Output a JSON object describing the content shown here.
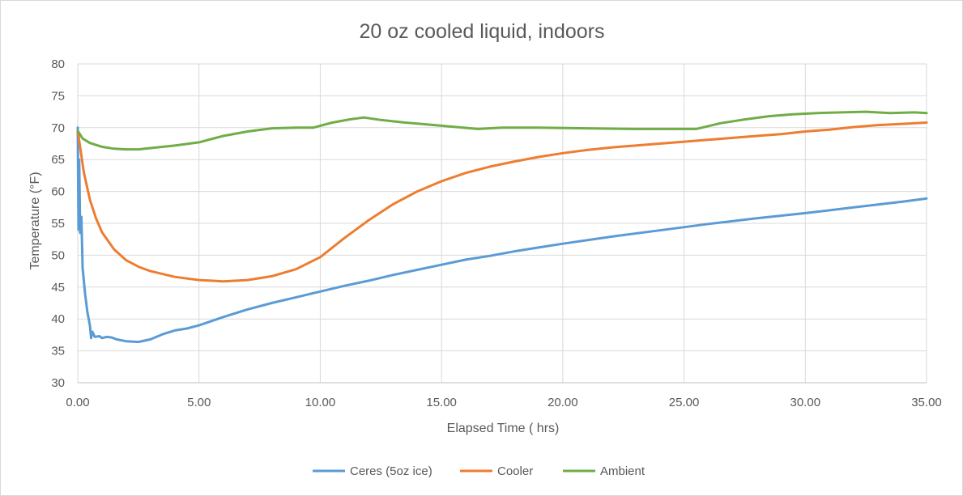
{
  "chart_data": {
    "type": "line",
    "title": "20 oz cooled liquid, indoors",
    "xlabel": "Elapsed Time ( hrs)",
    "ylabel": "Temperature (°F)",
    "xlim": [
      0,
      35
    ],
    "ylim": [
      30,
      80
    ],
    "xticks": [
      0,
      5,
      10,
      15,
      20,
      25,
      30,
      35
    ],
    "xtick_labels": [
      "0.00",
      "5.00",
      "10.00",
      "15.00",
      "20.00",
      "25.00",
      "30.00",
      "35.00"
    ],
    "yticks": [
      30,
      35,
      40,
      45,
      50,
      55,
      60,
      65,
      70,
      75,
      80
    ],
    "ytick_labels": [
      "30",
      "35",
      "40",
      "45",
      "50",
      "55",
      "60",
      "65",
      "70",
      "75",
      "80"
    ],
    "grid": "vertical-and-horizontal",
    "legend_position": "bottom",
    "series": [
      {
        "name": "Ceres (5oz ice)",
        "color": "#5b9bd5",
        "x": [
          0,
          0.03,
          0.06,
          0.1,
          0.15,
          0.2,
          0.3,
          0.4,
          0.5,
          0.55,
          0.6,
          0.7,
          0.9,
          1.0,
          1.2,
          1.4,
          1.6,
          2.0,
          2.5,
          3.0,
          3.5,
          4.0,
          4.5,
          5.0,
          6.0,
          7.0,
          8.0,
          9.0,
          10.0,
          11.0,
          12.0,
          13.0,
          14.0,
          15.0,
          16.0,
          17.0,
          18.0,
          19.0,
          20.0,
          22.0,
          24.0,
          26.0,
          28.0,
          30.0,
          32.0,
          34.0,
          35.0
        ],
        "y": [
          70,
          54,
          65,
          53.5,
          56,
          48,
          44,
          41,
          39,
          37,
          38,
          37.2,
          37.3,
          37.0,
          37.2,
          37.1,
          36.8,
          36.5,
          36.4,
          36.8,
          37.6,
          38.2,
          38.5,
          39.0,
          40.3,
          41.5,
          42.5,
          43.4,
          44.3,
          45.2,
          46.0,
          46.9,
          47.7,
          48.5,
          49.3,
          49.9,
          50.6,
          51.2,
          51.8,
          52.9,
          53.9,
          54.9,
          55.8,
          56.6,
          57.5,
          58.4,
          58.9
        ]
      },
      {
        "name": "Cooler",
        "color": "#ed7d31",
        "x": [
          0,
          0.25,
          0.5,
          0.75,
          1.0,
          1.5,
          2.0,
          2.5,
          3.0,
          4.0,
          5.0,
          6.0,
          7.0,
          8.0,
          9.0,
          10.0,
          11.0,
          12.0,
          13.0,
          14.0,
          15.0,
          16.0,
          17.0,
          18.0,
          19.0,
          20.0,
          21.0,
          22.0,
          23.0,
          24.0,
          25.0,
          26.0,
          27.0,
          28.0,
          29.0,
          30.0,
          31.0,
          32.0,
          33.0,
          34.0,
          35.0
        ],
        "y": [
          69.5,
          63.0,
          58.7,
          55.8,
          53.6,
          50.9,
          49.2,
          48.2,
          47.5,
          46.6,
          46.1,
          45.9,
          46.1,
          46.7,
          47.8,
          49.7,
          52.7,
          55.5,
          58.0,
          60.0,
          61.6,
          62.9,
          63.9,
          64.7,
          65.4,
          66.0,
          66.5,
          66.9,
          67.2,
          67.5,
          67.8,
          68.1,
          68.4,
          68.7,
          69.0,
          69.4,
          69.7,
          70.1,
          70.4,
          70.6,
          70.8
        ]
      },
      {
        "name": "Ambient",
        "color": "#70ad47",
        "x": [
          0,
          0.2,
          0.5,
          1.0,
          1.5,
          2.0,
          2.5,
          3.0,
          4.0,
          5.0,
          6.0,
          7.0,
          8.0,
          9.0,
          9.7,
          10.5,
          11.2,
          11.8,
          12.5,
          13.5,
          15.0,
          16.5,
          17.5,
          19.0,
          21.0,
          23.0,
          24.5,
          25.5,
          26.5,
          27.5,
          28.5,
          29.5,
          30.5,
          31.5,
          32.5,
          33.5,
          34.5,
          35.0
        ],
        "y": [
          69.5,
          68.3,
          67.6,
          67.0,
          66.7,
          66.6,
          66.6,
          66.8,
          67.2,
          67.7,
          68.7,
          69.4,
          69.9,
          70.0,
          70.0,
          70.8,
          71.3,
          71.6,
          71.2,
          70.8,
          70.3,
          69.8,
          70.0,
          70.0,
          69.9,
          69.8,
          69.8,
          69.8,
          70.7,
          71.3,
          71.8,
          72.1,
          72.3,
          72.4,
          72.5,
          72.3,
          72.4,
          72.3
        ]
      }
    ]
  }
}
